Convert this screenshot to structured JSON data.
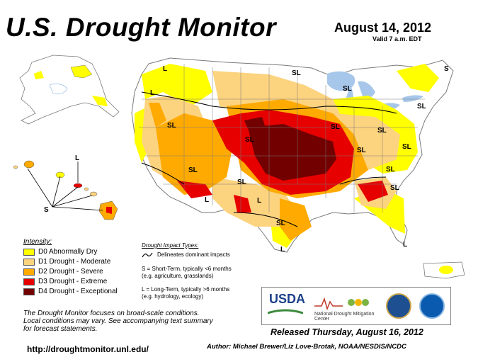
{
  "header": {
    "title": "U.S. Drought Monitor",
    "date": "August 14, 2012",
    "valid": "Valid 7 a.m. EDT"
  },
  "colors": {
    "water": "#a7c7ea",
    "land": "#ffffff",
    "d0": "#ffff00",
    "d1": "#fcd37f",
    "d2": "#ffaa00",
    "d3": "#e60000",
    "d4": "#730000",
    "boundary": "#7a7a7a"
  },
  "map": {
    "labels": [
      "L",
      "SL",
      "SL",
      "S",
      "SL",
      "SL",
      "SL",
      "SL",
      "SL",
      "SL",
      "SL",
      "SL",
      "SL",
      "SL",
      "SL",
      "SL",
      "L",
      "L",
      "L",
      "L",
      "L",
      "S",
      "L"
    ]
  },
  "legend": {
    "title": "Intensity:",
    "items": [
      {
        "label": "D0 Abnormally Dry",
        "color": "#ffff00"
      },
      {
        "label": "D1 Drought - Moderate",
        "color": "#fcd37f"
      },
      {
        "label": "D2 Drought - Severe",
        "color": "#ffaa00"
      },
      {
        "label": "D3 Drought - Extreme",
        "color": "#e60000"
      },
      {
        "label": "D4 Drought - Exceptional",
        "color": "#730000"
      }
    ]
  },
  "impact": {
    "title": "Drought Impact Types:",
    "delineates": "Delineates dominant impacts",
    "short1": "S = Short-Term, typically <6 months",
    "short2": "(e.g. agriculture, grasslands)",
    "long1": "L = Long-Term, typically >6 months",
    "long2": "(e.g. hydrology, ecology)"
  },
  "note": {
    "line1": "The Drought Monitor focuses on broad-scale conditions.",
    "line2": "Local conditions may vary. See accompanying text summary",
    "line3": "for forecast statements."
  },
  "footer": {
    "url": "http://droughtmonitor.unl.edu/",
    "released": "Released Thursday, August 16, 2012",
    "author": "Author: Michael Brewer/Liz Love-Brotak, NOAA/NESDIS/NCDC"
  },
  "logos": {
    "usda": "USDA",
    "ndmc": "National Drought Mitigation Center"
  }
}
